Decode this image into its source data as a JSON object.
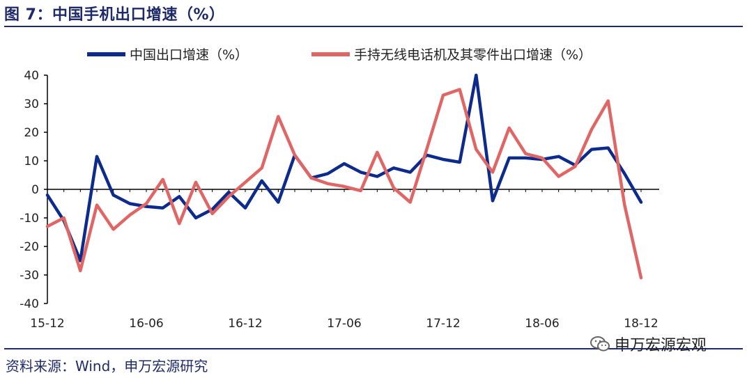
{
  "header": {
    "title": "图 7：中国手机出口增速（%）"
  },
  "footer": {
    "source": "资料来源：Wind，申万宏源研究",
    "watermark": "申万宏源宏观",
    "watermark_icon": "wechat-icon"
  },
  "colors": {
    "series1": "#0d2b8c",
    "series2": "#e06666",
    "text": "#1f2a6b"
  },
  "chart_data": {
    "type": "line",
    "title": "",
    "xlabel": "",
    "ylabel": "",
    "ylim": [
      -40,
      40
    ],
    "yticks": [
      40,
      30,
      20,
      10,
      0,
      -10,
      -20,
      -30,
      -40
    ],
    "x_tick_labels": [
      "15-12",
      "16-06",
      "16-12",
      "17-06",
      "17-12",
      "18-06",
      "18-12"
    ],
    "x_tick_positions": [
      0,
      6,
      12,
      18,
      24,
      30,
      36
    ],
    "x": [
      "15-12",
      "16-01",
      "16-02",
      "16-03",
      "16-04",
      "16-05",
      "16-06",
      "16-07",
      "16-08",
      "16-09",
      "16-10",
      "16-11",
      "16-12",
      "17-01",
      "17-02",
      "17-03",
      "17-04",
      "17-05",
      "17-06",
      "17-07",
      "17-08",
      "17-09",
      "17-10",
      "17-11",
      "17-12",
      "18-01",
      "18-02",
      "18-03",
      "18-04",
      "18-05",
      "18-06",
      "18-07",
      "18-08",
      "18-09",
      "18-10",
      "18-11",
      "18-12"
    ],
    "legend": {
      "placement": "top"
    },
    "grid": false,
    "series": [
      {
        "name": "中国出口增速（%）",
        "color": "#0d2b8c",
        "values": [
          -2,
          -11,
          -25,
          11.5,
          -2,
          -5,
          -6,
          -6.5,
          -2.5,
          -10,
          -7,
          -1,
          -6.5,
          3,
          -4.5,
          12,
          4,
          5.5,
          9,
          6,
          4.5,
          7.5,
          6,
          12,
          10.5,
          9.5,
          40,
          -4,
          11,
          11,
          10.5,
          11.5,
          8.5,
          14,
          14.5,
          5.5,
          -4.5
        ]
      },
      {
        "name": "手持无线电话机及其零件出口增速（%）",
        "color": "#e06666",
        "values": [
          -13,
          -10,
          -28.5,
          -5.5,
          -14,
          -9,
          -5,
          3.5,
          -12,
          2.5,
          -8.5,
          -2.5,
          2.5,
          7.5,
          25.5,
          12,
          4,
          2,
          1,
          -0.5,
          13,
          0.5,
          -4.5,
          14,
          33,
          35,
          14,
          6,
          21.5,
          12.5,
          11,
          4.5,
          8,
          21,
          31,
          -5.5,
          -31
        ]
      }
    ]
  }
}
